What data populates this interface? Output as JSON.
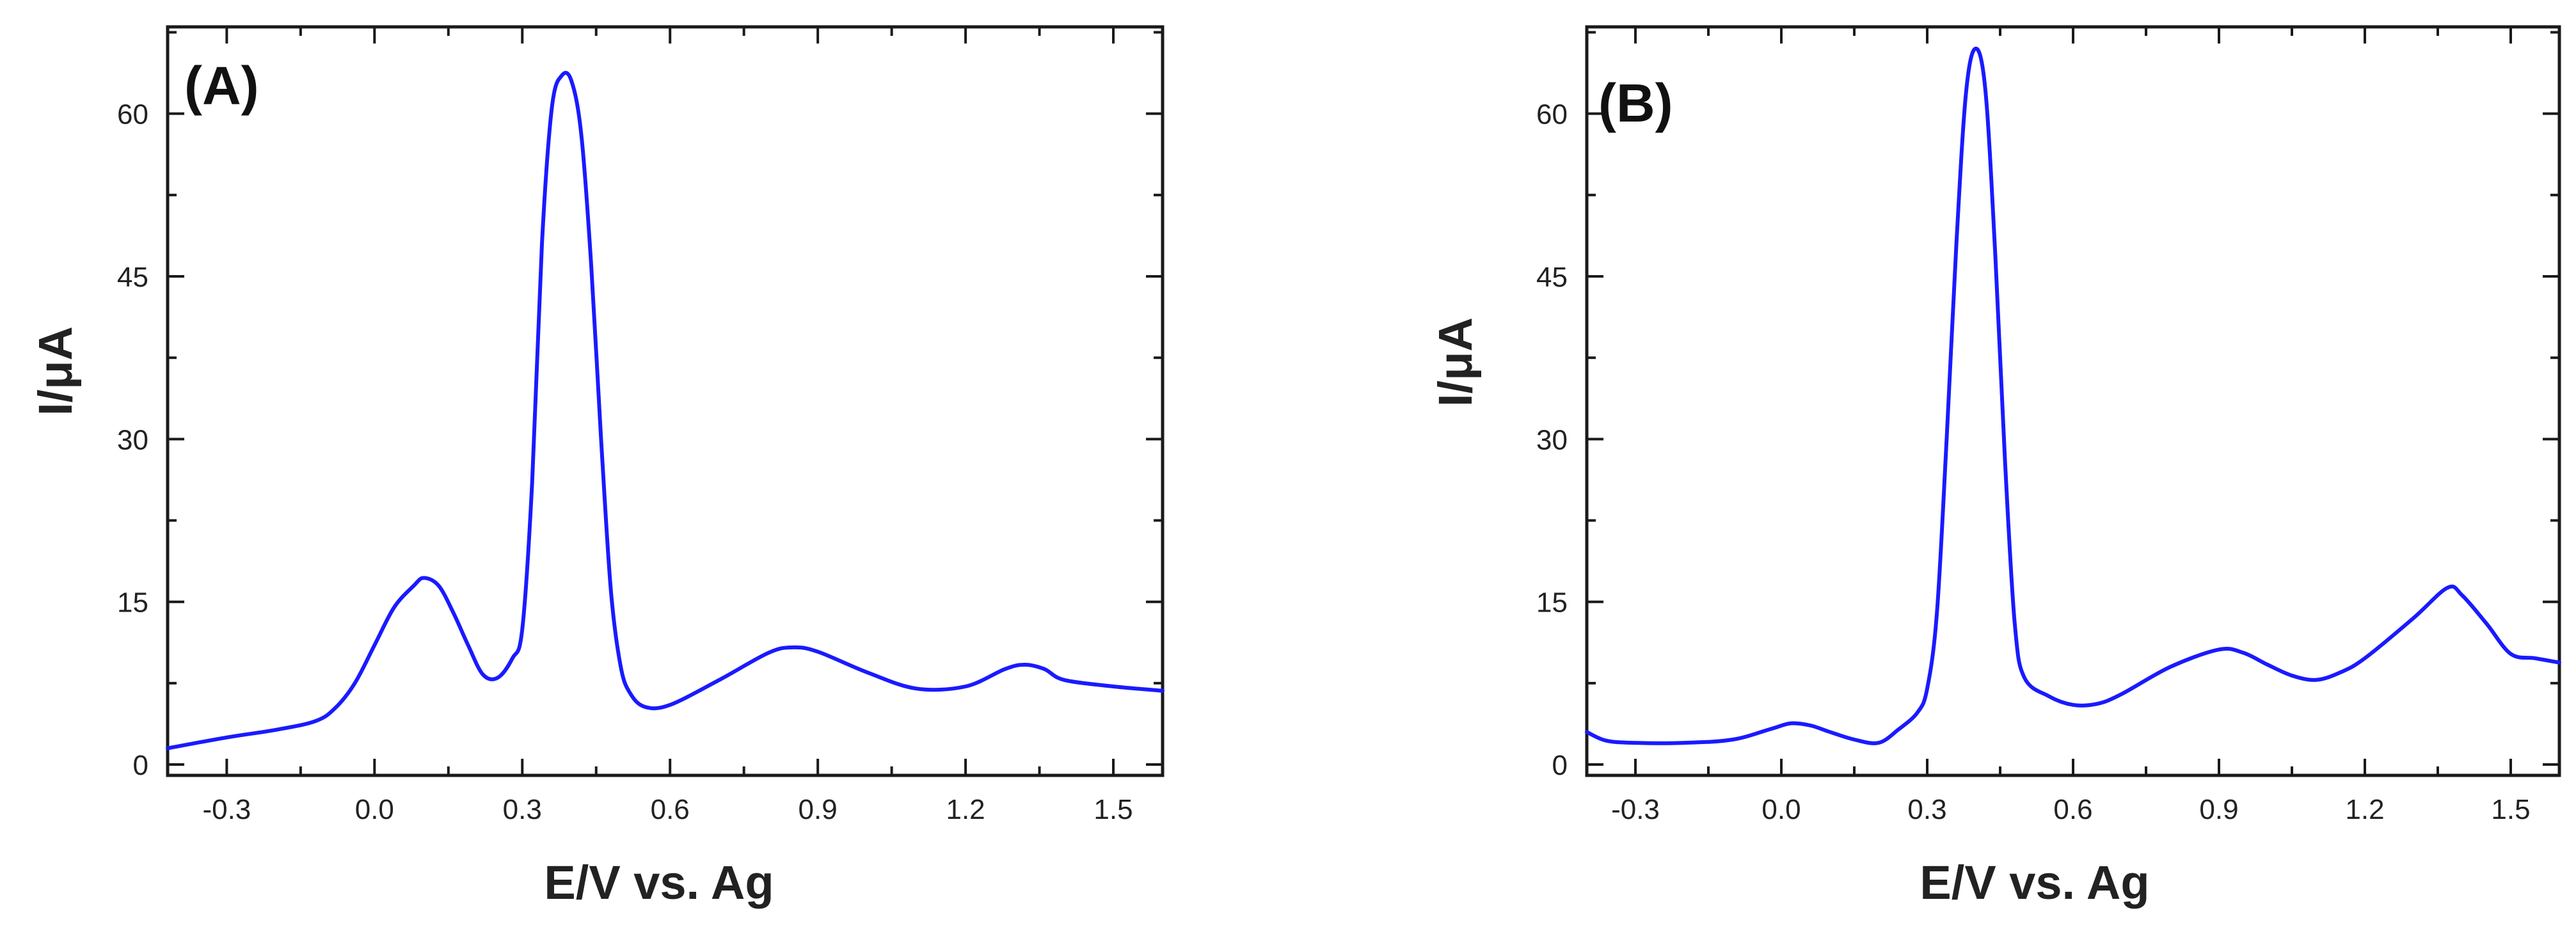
{
  "chart_data": [
    {
      "type": "line",
      "panel_label": "(A)",
      "xlabel": "E/V vs. Ag",
      "ylabel": "I/μA",
      "xlim": [
        -0.42,
        1.6
      ],
      "ylim": [
        -1,
        68
      ],
      "xticks": [
        "-0.3",
        "0.0",
        "0.3",
        "0.6",
        "0.9",
        "1.2",
        "1.5"
      ],
      "xtick_values": [
        -0.3,
        0.0,
        0.3,
        0.6,
        0.9,
        1.2,
        1.5
      ],
      "yticks": [
        "0",
        "15",
        "30",
        "45",
        "60"
      ],
      "ytick_values": [
        0,
        15,
        30,
        45,
        60
      ],
      "line_color": "#1a1aff",
      "series": [
        {
          "x": [
            -0.42,
            -0.3,
            -0.2,
            -0.12,
            -0.08,
            -0.04,
            0.0,
            0.04,
            0.08,
            0.1,
            0.13,
            0.16,
            0.19,
            0.22,
            0.25,
            0.28,
            0.3,
            0.32,
            0.34,
            0.36,
            0.38,
            0.4,
            0.42,
            0.44,
            0.46,
            0.48,
            0.5,
            0.52,
            0.55,
            0.6,
            0.7,
            0.8,
            0.85,
            0.9,
            1.0,
            1.1,
            1.2,
            1.28,
            1.32,
            1.36,
            1.4,
            1.5,
            1.6
          ],
          "y": [
            1.5,
            2.5,
            3.2,
            4.0,
            5.2,
            7.5,
            11.0,
            14.5,
            16.5,
            17.2,
            16.5,
            14.0,
            11.0,
            8.3,
            8.0,
            9.8,
            12.5,
            26.0,
            48.0,
            60.5,
            63.5,
            63.0,
            58.0,
            46.0,
            30.0,
            16.0,
            9.0,
            6.5,
            5.3,
            5.5,
            7.8,
            10.3,
            10.8,
            10.4,
            8.5,
            7.0,
            7.2,
            8.8,
            9.2,
            8.8,
            7.8,
            7.2,
            6.8
          ]
        }
      ]
    },
    {
      "type": "line",
      "panel_label": "(B)",
      "xlabel": "E/V vs. Ag",
      "ylabel": "I/μA",
      "xlim": [
        -0.4,
        1.6
      ],
      "ylim": [
        -1,
        68
      ],
      "xticks": [
        "-0.3",
        "0.0",
        "0.3",
        "0.6",
        "0.9",
        "1.2",
        "1.5"
      ],
      "xtick_values": [
        -0.3,
        0.0,
        0.3,
        0.6,
        0.9,
        1.2,
        1.5
      ],
      "yticks": [
        "0",
        "15",
        "30",
        "45",
        "60"
      ],
      "ytick_values": [
        0,
        15,
        30,
        45,
        60
      ],
      "line_color": "#1a1aff",
      "series": [
        {
          "x": [
            -0.4,
            -0.36,
            -0.3,
            -0.2,
            -0.1,
            -0.02,
            0.02,
            0.06,
            0.1,
            0.15,
            0.2,
            0.24,
            0.28,
            0.3,
            0.32,
            0.34,
            0.36,
            0.38,
            0.4,
            0.42,
            0.44,
            0.46,
            0.48,
            0.5,
            0.55,
            0.6,
            0.65,
            0.7,
            0.8,
            0.9,
            0.95,
            1.0,
            1.05,
            1.1,
            1.15,
            1.2,
            1.3,
            1.37,
            1.4,
            1.45,
            1.5,
            1.55,
            1.6
          ],
          "y": [
            3.0,
            2.2,
            2.0,
            2.0,
            2.3,
            3.3,
            3.8,
            3.6,
            3.0,
            2.3,
            2.0,
            3.2,
            4.8,
            7.0,
            14.0,
            30.0,
            48.0,
            62.0,
            66.0,
            62.0,
            47.0,
            28.0,
            13.0,
            8.0,
            6.3,
            5.5,
            5.6,
            6.5,
            9.0,
            10.6,
            10.3,
            9.2,
            8.2,
            7.8,
            8.5,
            9.8,
            13.5,
            16.3,
            15.6,
            13.0,
            10.2,
            9.8,
            9.4
          ]
        }
      ]
    }
  ]
}
